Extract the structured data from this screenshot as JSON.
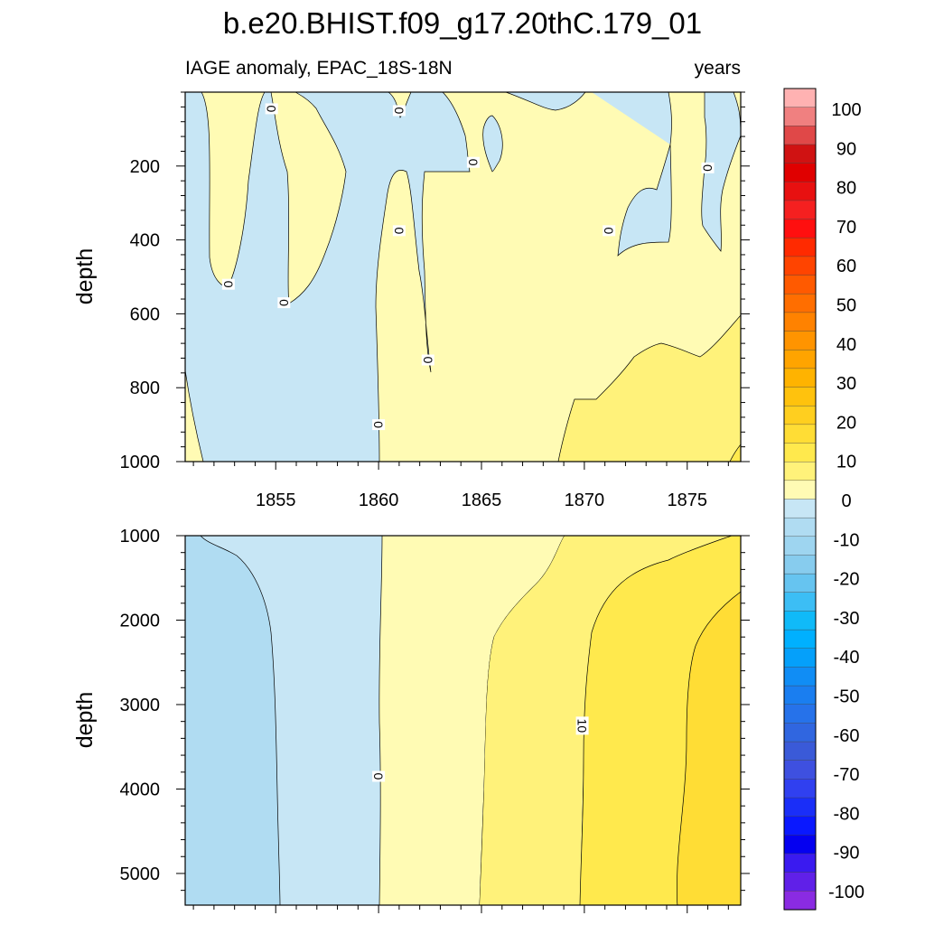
{
  "chart_data": {
    "type": "heatmap",
    "title": "b.e20.BHIST.f09_g17.20thC.179_01",
    "left_subtitle": "IAGE anomaly, EPAC_18S-18N",
    "right_subtitle": "years",
    "xlim": [
      1850.6,
      1877.6
    ],
    "x_ticks": [
      1855,
      1860,
      1865,
      1870,
      1875
    ],
    "x_tick_labels": [
      "1855",
      "1860",
      "1865",
      "1870",
      "1875"
    ],
    "panels": [
      {
        "ylabel": "depth",
        "ylim": [
          0,
          1000
        ],
        "y_ticks": [
          200,
          400,
          600,
          800,
          1000
        ],
        "y_tick_labels": [
          "200",
          "400",
          "600",
          "800",
          "1000"
        ],
        "contour_labels": [
          {
            "text": "0",
            "x": 1854.8,
            "y": 45
          },
          {
            "text": "0",
            "x": 1861.0,
            "y": 50
          },
          {
            "text": "0",
            "x": 1864.6,
            "y": 190
          },
          {
            "text": "0",
            "x": 1876.0,
            "y": 205
          },
          {
            "text": "0",
            "x": 1861.0,
            "y": 375
          },
          {
            "text": "0",
            "x": 1871.2,
            "y": 375
          },
          {
            "text": "0",
            "x": 1852.7,
            "y": 520
          },
          {
            "text": "0",
            "x": 1855.4,
            "y": 570
          },
          {
            "text": "0",
            "x": 1862.4,
            "y": 725
          },
          {
            "text": "0",
            "x": 1860.0,
            "y": 900
          }
        ]
      },
      {
        "ylabel": "depth",
        "ylim": [
          1000,
          5375
        ],
        "y_ticks": [
          1000,
          2000,
          3000,
          4000,
          5000
        ],
        "y_tick_labels": [
          "1000",
          "2000",
          "3000",
          "4000",
          "5000"
        ],
        "contour_labels": [
          {
            "text": "10",
            "x": 1869.9,
            "y": 3250
          },
          {
            "text": "0",
            "x": 1860.0,
            "y": 3850
          }
        ]
      }
    ],
    "colorbar": {
      "labels": [
        "100",
        "90",
        "80",
        "70",
        "60",
        "50",
        "40",
        "30",
        "20",
        "10",
        "0",
        "-10",
        "-20",
        "-30",
        "-40",
        "-50",
        "-60",
        "-70",
        "-80",
        "-90",
        "-100"
      ],
      "colors": [
        "#ffb2b2",
        "#f08080",
        "#e04848",
        "#d01212",
        "#e00000",
        "#e81010",
        "#f52020",
        "#ff0f0f",
        "#ff2a00",
        "#ff4400",
        "#ff5a00",
        "#ff6e00",
        "#ff8200",
        "#ff9400",
        "#ffa400",
        "#ffb300",
        "#ffc20d",
        "#ffcf1f",
        "#ffdd35",
        "#ffe94d",
        "#fff27a",
        "#fffbb4",
        "#c7e6f5",
        "#b0dcf2",
        "#9ed5f0",
        "#87ccee",
        "#66c4f0",
        "#3cbef5",
        "#10baf8",
        "#00b0ff",
        "#05a0fa",
        "#108df5",
        "#1a7ef0",
        "#2672ea",
        "#3066e0",
        "#3a5ad8",
        "#3e50e0",
        "#3040f0",
        "#1a2ef8",
        "#0a18ff",
        "#0500f0",
        "#3a1af0",
        "#6020e8",
        "#8a2be2"
      ],
      "range_label": "Years"
    }
  }
}
